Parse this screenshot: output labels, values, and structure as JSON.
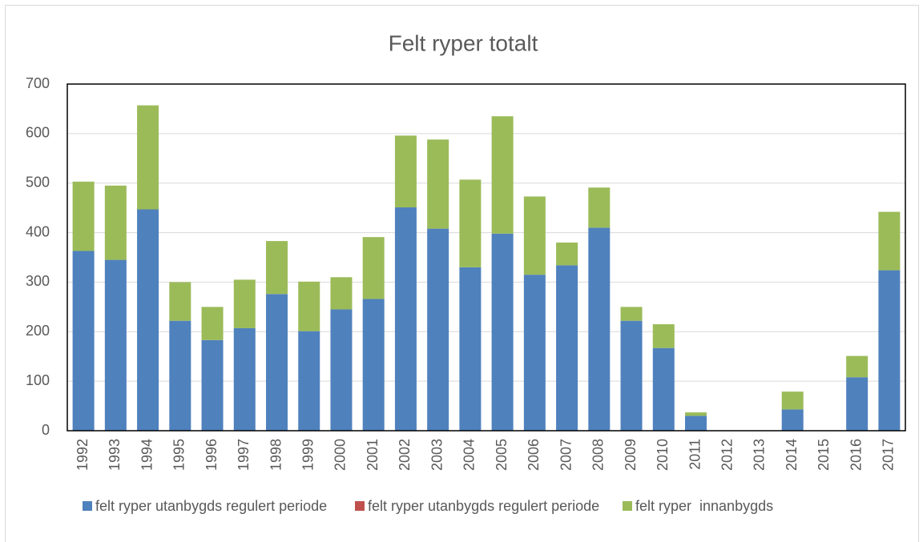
{
  "chart_data": {
    "type": "stacked_bar",
    "title": "Felt ryper totalt",
    "categories": [
      "1992",
      "1993",
      "1994",
      "1995",
      "1996",
      "1997",
      "1998",
      "1999",
      "2000",
      "2001",
      "2002",
      "2003",
      "2004",
      "2005",
      "2006",
      "2007",
      "2008",
      "2009",
      "2010",
      "2011",
      "2012",
      "2013",
      "2014",
      "2015",
      "2016",
      "2017"
    ],
    "series": [
      {
        "name": "felt ryper utanbygds regulert periode",
        "color": "#4f81bd",
        "values": [
          363,
          345,
          447,
          222,
          183,
          207,
          276,
          201,
          245,
          266,
          451,
          408,
          330,
          398,
          315,
          334,
          410,
          222,
          167,
          30,
          0,
          0,
          43,
          0,
          108,
          324
        ]
      },
      {
        "name": "felt ryper utanbygds regulert periode",
        "color": "#c0504d",
        "values": [
          0,
          0,
          0,
          0,
          0,
          0,
          0,
          0,
          0,
          0,
          0,
          0,
          0,
          0,
          0,
          0,
          0,
          0,
          0,
          0,
          0,
          0,
          0,
          0,
          0,
          0
        ]
      },
      {
        "name": "felt ryper  innanbygds",
        "color": "#9bbb59",
        "values": [
          140,
          150,
          210,
          78,
          67,
          98,
          107,
          100,
          65,
          125,
          145,
          180,
          177,
          237,
          158,
          46,
          81,
          28,
          48,
          7,
          0,
          0,
          36,
          0,
          43,
          118
        ]
      }
    ],
    "ylim": [
      0,
      700
    ],
    "yticks": [
      0,
      100,
      200,
      300,
      400,
      500,
      600,
      700
    ],
    "grid": true,
    "legend": "bottom"
  }
}
